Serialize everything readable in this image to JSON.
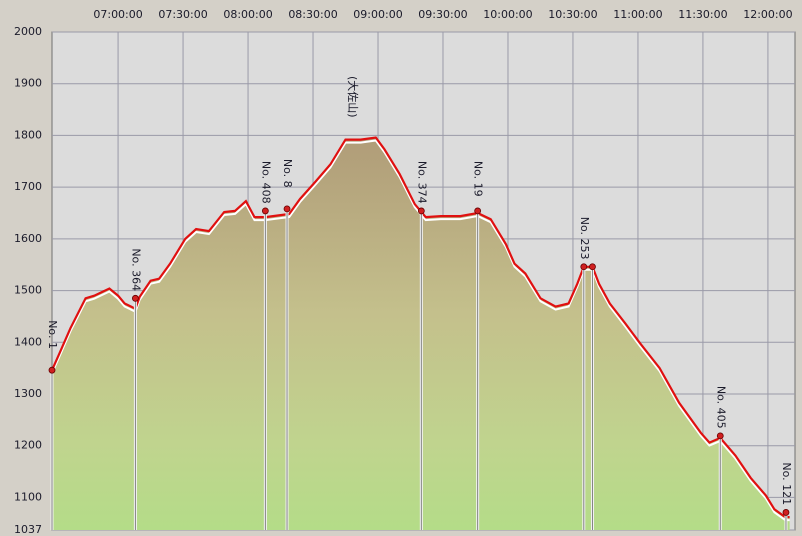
{
  "chart_data": {
    "type": "area",
    "x": [
      "06:29:30",
      "06:33:00",
      "06:38:00",
      "06:45:00",
      "06:49:00",
      "06:56:00",
      "07:00:00",
      "07:03:00",
      "07:08:00",
      "07:10:00",
      "07:15:00",
      "07:19:00",
      "07:24:00",
      "07:31:00",
      "07:36:00",
      "07:42:00",
      "07:49:00",
      "07:54:00",
      "07:59:00",
      "08:03:00",
      "08:08:00",
      "08:15:00",
      "08:19:00",
      "08:24:00",
      "08:31:00",
      "08:38:00",
      "08:45:00",
      "08:52:00",
      "08:59:00",
      "09:03:00",
      "09:10:00",
      "09:17:00",
      "09:22:00",
      "09:29:00",
      "09:38:00",
      "09:46:00",
      "09:52:00",
      "09:59:00",
      "10:03:00",
      "10:08:00",
      "10:15:00",
      "10:22:00",
      "10:28:00",
      "10:32:00",
      "10:35:00",
      "10:39:00",
      "10:42:00",
      "10:47:00",
      "10:54:00",
      "11:01:00",
      "11:10:00",
      "11:19:00",
      "11:29:00",
      "11:33:00",
      "11:38:00",
      "11:45:00",
      "11:52:00",
      "11:59:00",
      "12:03:00",
      "12:08:00",
      "12:10:00"
    ],
    "series": [
      {
        "color": "#e01010",
        "values": [
          1346,
          1379,
          1427,
          1485,
          1490,
          1504,
          1490,
          1475,
          1465,
          1488,
          1519,
          1523,
          1552,
          1600,
          1619,
          1615,
          1652,
          1654,
          1673,
          1642,
          1642,
          1646,
          1648,
          1677,
          1710,
          1744,
          1792,
          1792,
          1796,
          1773,
          1725,
          1667,
          1642,
          1644,
          1644,
          1650,
          1638,
          1590,
          1552,
          1533,
          1485,
          1469,
          1475,
          1513,
          1546,
          1546,
          1513,
          1475,
          1437,
          1398,
          1350,
          1283,
          1225,
          1206,
          1215,
          1181,
          1138,
          1104,
          1077,
          1062,
          1062
        ]
      }
    ],
    "waypoints": [
      {
        "label": "No. 1",
        "time": "06:29:30",
        "elevation": 1346
      },
      {
        "label": "No. 364",
        "time": "07:08:00",
        "elevation": 1485
      },
      {
        "label": "No. 408",
        "time": "08:08:00",
        "elevation": 1654
      },
      {
        "label": "No. 8",
        "time": "08:18:00",
        "elevation": 1658
      },
      {
        "label": "(大佐山)",
        "time": "08:48:00"
      },
      {
        "label": "No. 374",
        "time": "09:20:00",
        "elevation": 1654
      },
      {
        "label": "No. 19",
        "time": "09:46:00",
        "elevation": 1654
      },
      {
        "label": "No. 253",
        "time": "10:35:00",
        "elevation": 1546
      },
      {
        "label": null,
        "time": "10:39:00",
        "elevation": 1546
      },
      {
        "label": "No. 405",
        "time": "11:38:00",
        "elevation": 1219
      },
      {
        "label": "No. 121",
        "time": "12:08:20",
        "elevation": 1071
      }
    ],
    "xlim": [
      "06:29:30",
      "12:12:30"
    ],
    "xticks": [
      "07:00:00",
      "07:30:00",
      "08:00:00",
      "08:30:00",
      "09:00:00",
      "09:30:00",
      "10:00:00",
      "10:30:00",
      "11:00:00",
      "11:30:00",
      "12:00:00"
    ],
    "ylim": [
      1037,
      2000
    ],
    "yticks": [
      1037,
      1100,
      1200,
      1300,
      1400,
      1500,
      1600,
      1700,
      1800,
      1900,
      2000
    ],
    "grid": true
  }
}
